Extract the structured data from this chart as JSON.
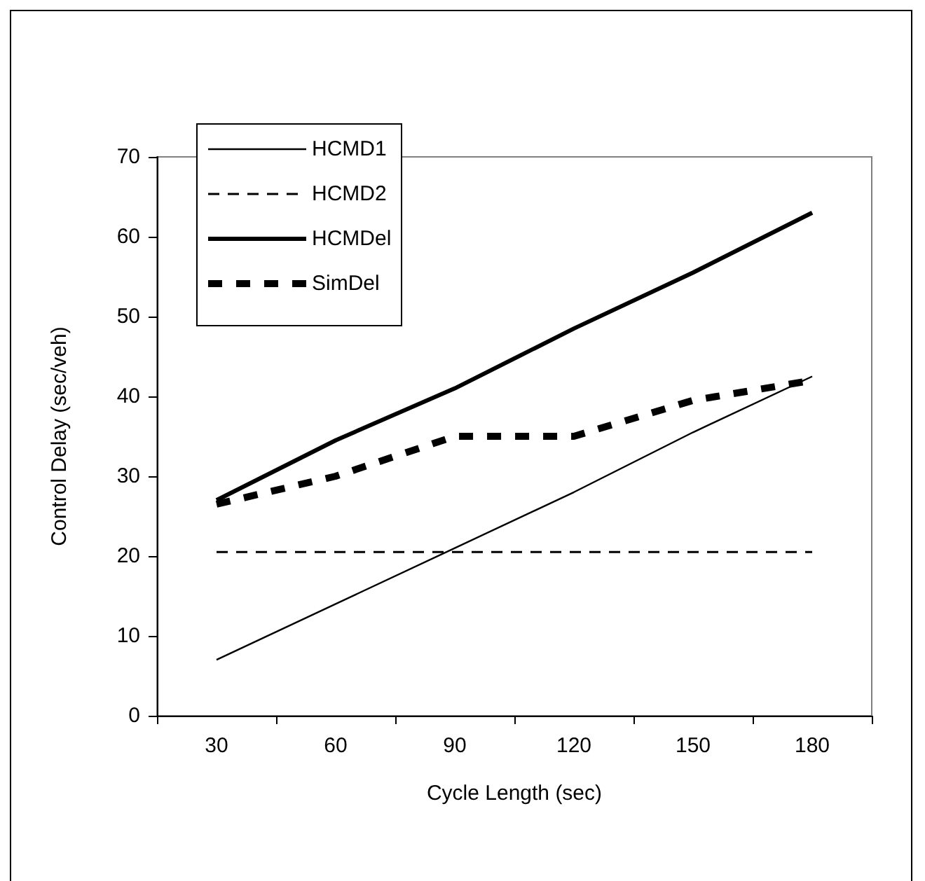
{
  "chart_data": {
    "type": "line",
    "xlabel": "Cycle Length (sec)",
    "ylabel": "Control Delay (sec/veh)",
    "categories": [
      "30",
      "60",
      "90",
      "120",
      "150",
      "180"
    ],
    "series": [
      {
        "name": "HCMD1",
        "color": "#000000",
        "line_style": "solid",
        "values": [
          7,
          14,
          21,
          28,
          35.5,
          42.5
        ]
      },
      {
        "name": "HCMD2",
        "color": "#000000",
        "line_style": "dashed",
        "values": [
          20.5,
          20.5,
          20.5,
          20.5,
          20.5,
          20.5
        ]
      },
      {
        "name": "HCMDel",
        "color": "#000000",
        "line_style": "solid",
        "values": [
          27,
          34.5,
          41,
          48.5,
          55.5,
          63
        ]
      },
      {
        "name": "SimDel",
        "color": "#000000",
        "line_style": "dashed",
        "values": [
          26.5,
          30,
          35,
          35,
          39.5,
          42
        ]
      }
    ],
    "ylim": [
      0,
      70
    ],
    "yticks": [
      0,
      10,
      20,
      30,
      40,
      50,
      60,
      70
    ],
    "grid": false,
    "legend": "top left",
    "marker": "none"
  }
}
